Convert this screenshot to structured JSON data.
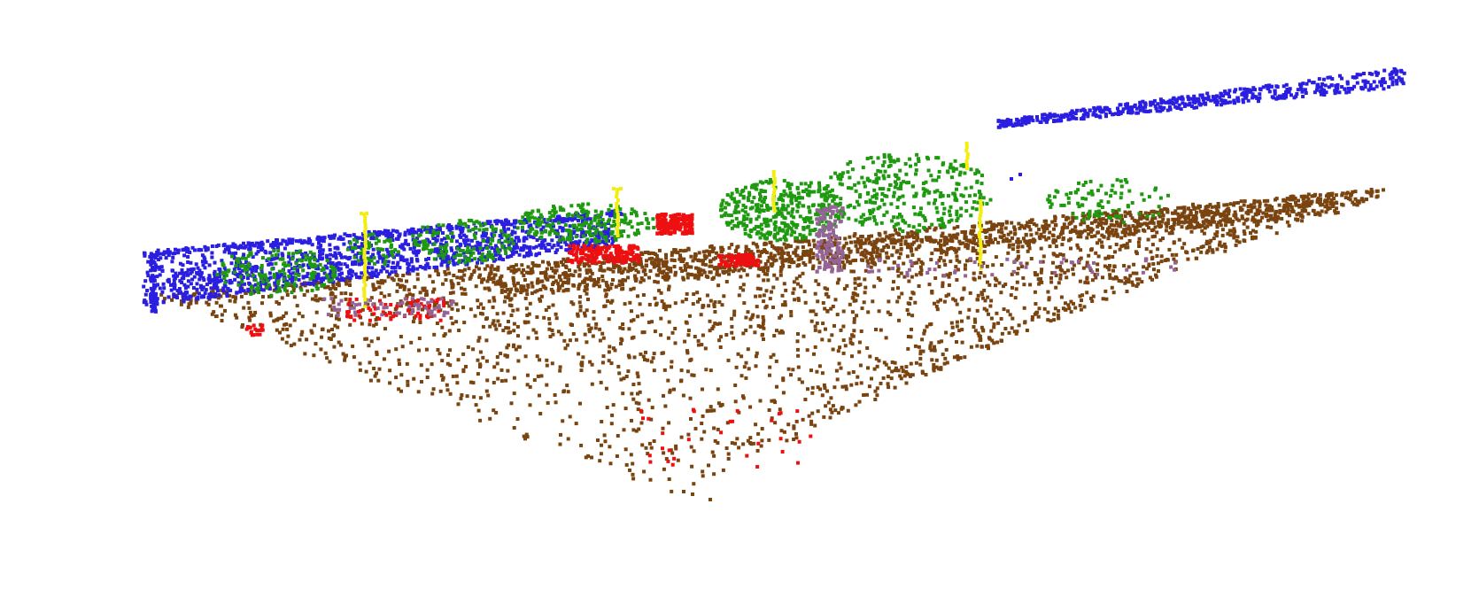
{
  "scene": {
    "kind": "semantic-segmentation-point-cloud",
    "background": "#ffffff",
    "classes": [
      {
        "name": "ground",
        "color": "#7a4410"
      },
      {
        "name": "building",
        "color": "#2a1fe0"
      },
      {
        "name": "vegetation",
        "color": "#1f9a10"
      },
      {
        "name": "vehicle",
        "color": "#ee1010"
      },
      {
        "name": "pole",
        "color": "#f2ee10"
      },
      {
        "name": "trunk",
        "color": "#946496"
      }
    ]
  }
}
